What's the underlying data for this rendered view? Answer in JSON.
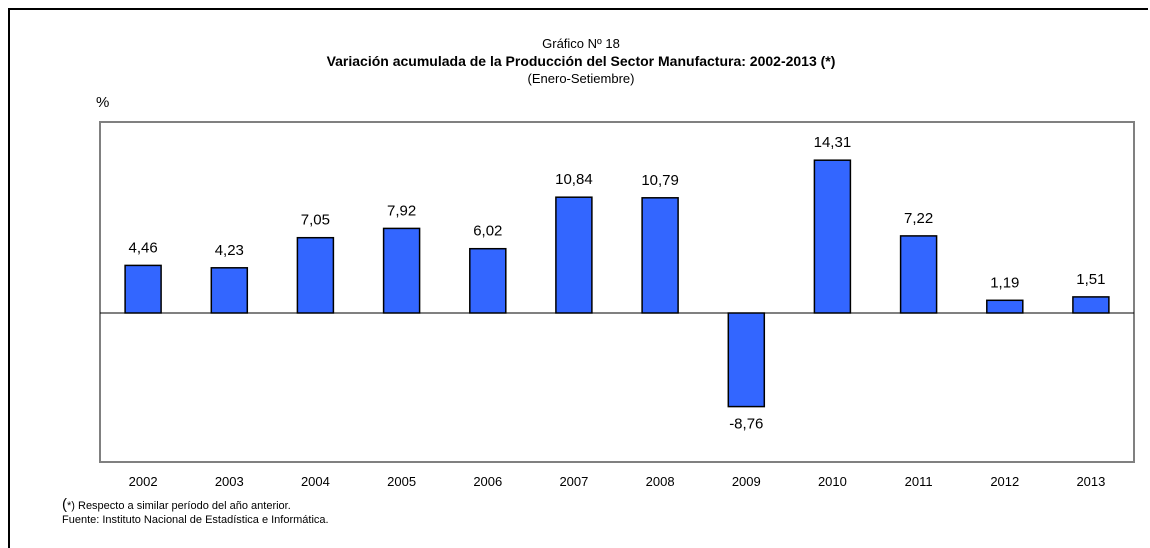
{
  "chart_data": {
    "type": "bar",
    "supertitle": "Gráfico Nº 18",
    "title": "Variación acumulada de la Producción del Sector Manufactura: 2002-2013 (*)",
    "subtitle": "(Enero-Setiembre)",
    "ylabel": "%",
    "xlabel": "",
    "categories": [
      "2002",
      "2003",
      "2004",
      "2005",
      "2006",
      "2007",
      "2008",
      "2009",
      "2010",
      "2011",
      "2012",
      "2013"
    ],
    "values": [
      4.46,
      4.23,
      7.05,
      7.92,
      6.02,
      10.84,
      10.79,
      -8.76,
      14.31,
      7.22,
      1.19,
      1.51
    ],
    "value_labels": [
      "4,46",
      "4,23",
      "7,05",
      "7,92",
      "6,02",
      "10,84",
      "10,79",
      "-8,76",
      "14,31",
      "7,22",
      "1,19",
      "1,51"
    ],
    "ylim": [
      -14,
      18
    ],
    "grid": false,
    "bar_color": "#3366ff",
    "bar_border_color": "#000000",
    "plot_border_color": "#808080"
  },
  "footnotes": {
    "note_paren": "(",
    "note_text": "*) Respecto a similar período del año anterior.",
    "source": "Fuente: Instituto Nacional de Estadística e Informática."
  }
}
